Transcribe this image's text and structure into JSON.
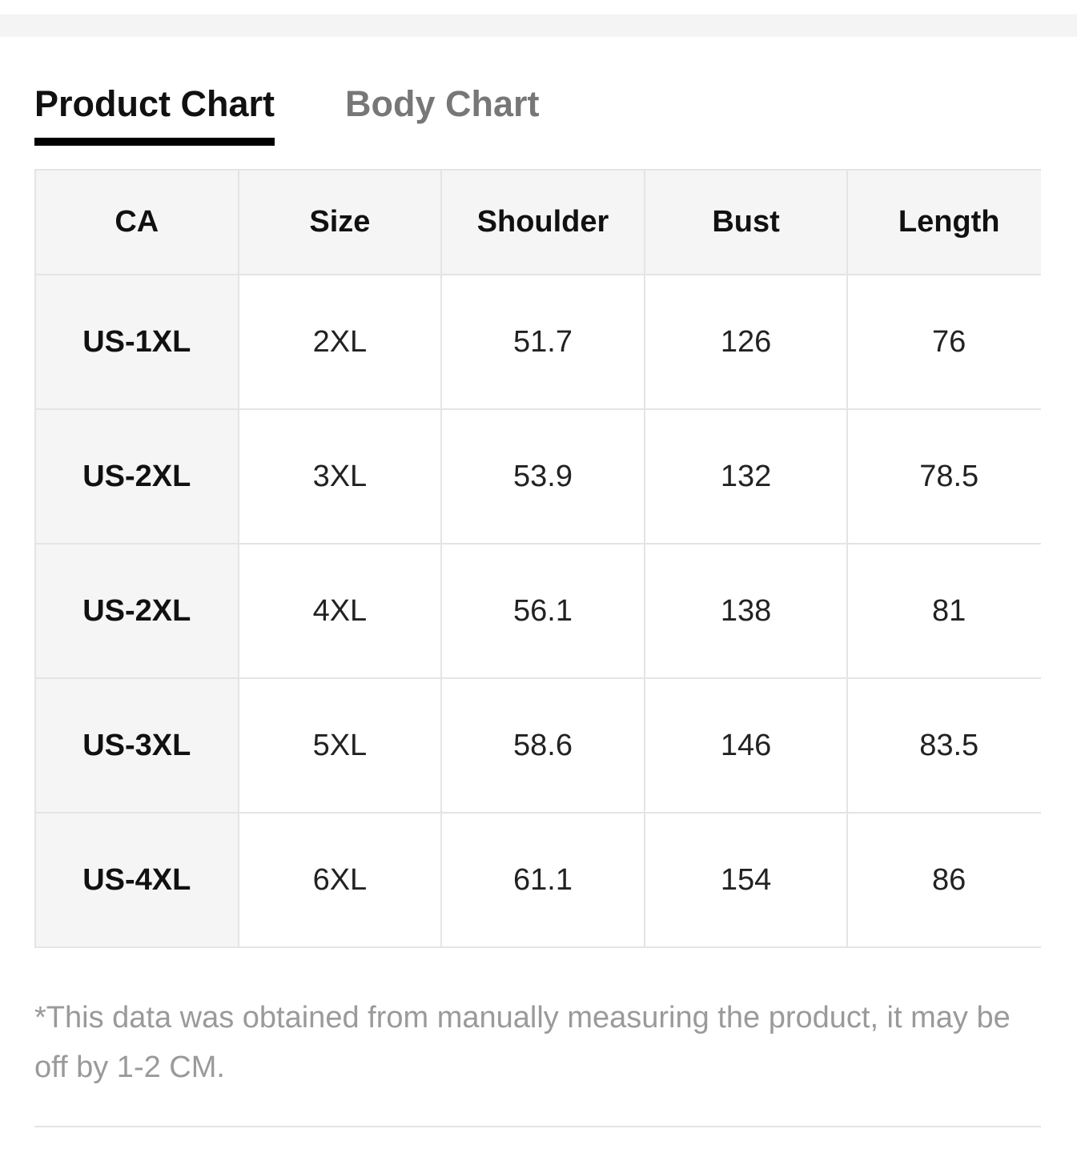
{
  "tabs": [
    {
      "label": "Product Chart",
      "active": true
    },
    {
      "label": "Body Chart",
      "active": false
    }
  ],
  "table": {
    "header": [
      "CA",
      "Size",
      "Shoulder",
      "Bust",
      "Length"
    ],
    "rows": [
      [
        "US-1XL",
        "2XL",
        51.7,
        126,
        76
      ],
      [
        "US-2XL",
        "3XL",
        53.9,
        132,
        78.5
      ],
      [
        "US-2XL",
        "4XL",
        56.1,
        138,
        81
      ],
      [
        "US-3XL",
        "5XL",
        58.6,
        146,
        83.5
      ],
      [
        "US-4XL",
        "6XL",
        61.1,
        154,
        86
      ]
    ]
  },
  "note": "*This data was obtained from manually measuring the product, it may be off by 1-2 CM."
}
